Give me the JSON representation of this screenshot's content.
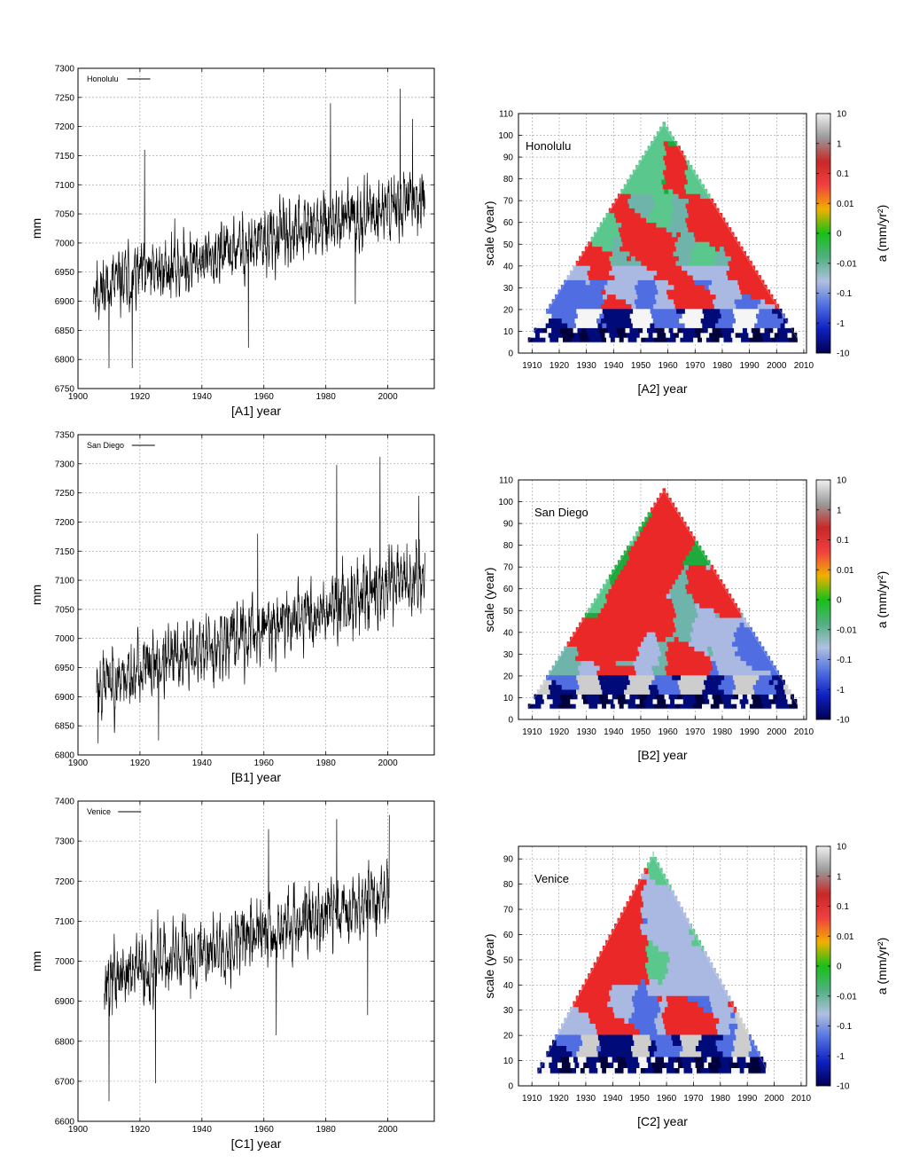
{
  "timeseries": [
    {
      "id": "A1",
      "city": "Honolulu",
      "xlabel": "[A1]   year",
      "ylabel": "mm",
      "xlim": [
        1900,
        2015
      ],
      "ylim": [
        6750,
        7300
      ],
      "xticks": [
        1900,
        1920,
        1940,
        1960,
        1980,
        2000
      ],
      "yticks": [
        6750,
        6800,
        6850,
        6900,
        6950,
        7000,
        7050,
        7100,
        7150,
        7200,
        7250,
        7300
      ],
      "start": 1905,
      "end": 2012,
      "base": [
        6920,
        7080
      ],
      "amp": 60,
      "seed": 11,
      "spikes": [
        [
          1910,
          6785
        ],
        [
          1917.5,
          6785
        ],
        [
          1955,
          6820
        ],
        [
          1989.5,
          6895
        ],
        [
          1981.5,
          7240
        ],
        [
          2004,
          7265
        ],
        [
          1921.5,
          7160
        ],
        [
          2008,
          7213
        ]
      ]
    },
    {
      "id": "B1",
      "city": "San Diego",
      "xlabel": "[B1]   year",
      "ylabel": "mm",
      "xlim": [
        1900,
        2015
      ],
      "ylim": [
        6800,
        7350
      ],
      "xticks": [
        1900,
        1920,
        1940,
        1960,
        1980,
        2000
      ],
      "yticks": [
        6800,
        6850,
        6900,
        6950,
        7000,
        7050,
        7100,
        7150,
        7200,
        7250,
        7300,
        7350
      ],
      "start": 1906,
      "end": 2012,
      "base": [
        6920,
        7110
      ],
      "amp": 65,
      "seed": 23,
      "spikes": [
        [
          1906.5,
          6820
        ],
        [
          1983.5,
          7298
        ],
        [
          1997.5,
          7312
        ],
        [
          1958,
          7180
        ],
        [
          2010,
          7245
        ],
        [
          1926,
          6825
        ]
      ]
    },
    {
      "id": "C1",
      "city": "Venice",
      "xlabel": "[C1]   year",
      "ylabel": "mm",
      "xlim": [
        1900,
        2015
      ],
      "ylim": [
        6600,
        7400
      ],
      "xticks": [
        1900,
        1920,
        1940,
        1960,
        1980,
        2000
      ],
      "yticks": [
        6600,
        6700,
        6800,
        6900,
        7000,
        7100,
        7200,
        7300,
        7400
      ],
      "start": 1908.5,
      "end": 2000.5,
      "base": [
        6950,
        7170
      ],
      "amp": 100,
      "seed": 37,
      "spikes": [
        [
          1910,
          6650
        ],
        [
          2000.5,
          7365
        ],
        [
          1983.5,
          7355
        ],
        [
          1961.5,
          7330
        ],
        [
          1925,
          6695
        ],
        [
          1964,
          6815
        ],
        [
          1993.5,
          6865
        ]
      ]
    }
  ],
  "heatmaps": [
    {
      "id": "A2",
      "city": "Honolulu",
      "xlabel": "[A2]   year",
      "ylabel": "scale (year)",
      "cbar_label": "a (mm/yr²)",
      "xlim": [
        1905,
        2011
      ],
      "ylim": [
        0,
        110
      ],
      "xticks": [
        1910,
        1920,
        1930,
        1940,
        1950,
        1960,
        1970,
        1980,
        1990,
        2000,
        2010
      ],
      "yticks": [
        0,
        10,
        20,
        30,
        40,
        50,
        60,
        70,
        80,
        90,
        100,
        110
      ],
      "apex": [
        1958.5,
        105
      ],
      "base_y": 5,
      "seed": 5,
      "scheme": "honolulu"
    },
    {
      "id": "B2",
      "city": "San Diego",
      "xlabel": "[B2]   year",
      "ylabel": "scale (year)",
      "cbar_label": "a (mm/yr²)",
      "xlim": [
        1905,
        2011
      ],
      "ylim": [
        0,
        110
      ],
      "xticks": [
        1910,
        1920,
        1930,
        1940,
        1950,
        1960,
        1970,
        1980,
        1990,
        2000,
        2010
      ],
      "yticks": [
        0,
        10,
        20,
        30,
        40,
        50,
        60,
        70,
        80,
        90,
        100,
        110
      ],
      "apex": [
        1958.5,
        105
      ],
      "base_y": 5,
      "seed": 9,
      "scheme": "sandiego"
    },
    {
      "id": "C2",
      "city": "Venice",
      "xlabel": "[C2]   year",
      "ylabel": "scale (year)",
      "cbar_label": "a (mm/yr²)",
      "xlim": [
        1905,
        2012
      ],
      "ylim": [
        0,
        95
      ],
      "xticks": [
        1910,
        1920,
        1930,
        1940,
        1950,
        1960,
        1970,
        1980,
        1990,
        2000,
        2010
      ],
      "yticks": [
        0,
        10,
        20,
        30,
        40,
        50,
        60,
        70,
        80,
        90
      ],
      "apex": [
        1955,
        91
      ],
      "base_y": 5,
      "seed": 17,
      "scheme": "venice"
    }
  ],
  "colorbar": {
    "labels": [
      "10",
      "1",
      "0.1",
      "0.01",
      "0",
      "-0.01",
      "-0.1",
      "-1",
      "-10"
    ],
    "colors": [
      "#f0f0f0",
      "#9a9a9a",
      "#c82828",
      "#f04040",
      "#f0b000",
      "#18c018",
      "#50b080",
      "#b0c0e0",
      "#5070e0",
      "#1020c0",
      "#000050"
    ]
  },
  "chart_data": [
    {
      "type": "line",
      "title": "Honolulu",
      "xlabel": "[A1] year",
      "ylabel": "mm",
      "xlim": [
        1900,
        2015
      ],
      "ylim": [
        6750,
        7300
      ],
      "series": [
        {
          "name": "Honolulu",
          "start_year": 1905,
          "end_year": 2012,
          "min": 6785,
          "max": 7265
        }
      ]
    },
    {
      "type": "heatmap",
      "title": "Honolulu",
      "xlabel": "[A2] year",
      "ylabel": "scale (year)",
      "xlim": [
        1905,
        2011
      ],
      "ylim": [
        0,
        110
      ],
      "colorbar": "a (mm/yr²)"
    },
    {
      "type": "line",
      "title": "San Diego",
      "xlabel": "[B1] year",
      "ylabel": "mm",
      "xlim": [
        1900,
        2015
      ],
      "ylim": [
        6800,
        7350
      ],
      "series": [
        {
          "name": "San Diego",
          "start_year": 1906,
          "end_year": 2012,
          "min": 6820,
          "max": 7312
        }
      ]
    },
    {
      "type": "heatmap",
      "title": "San Diego",
      "xlabel": "[B2] year",
      "ylabel": "scale (year)",
      "xlim": [
        1905,
        2011
      ],
      "ylim": [
        0,
        110
      ],
      "colorbar": "a (mm/yr²)"
    },
    {
      "type": "line",
      "title": "Venice",
      "xlabel": "[C1] year",
      "ylabel": "mm",
      "xlim": [
        1900,
        2015
      ],
      "ylim": [
        6600,
        7400
      ],
      "series": [
        {
          "name": "Venice",
          "start_year": 1908.5,
          "end_year": 2000.5,
          "min": 6650,
          "max": 7365
        }
      ]
    },
    {
      "type": "heatmap",
      "title": "Venice",
      "xlabel": "[C2] year",
      "ylabel": "scale (year)",
      "xlim": [
        1905,
        2012
      ],
      "ylim": [
        0,
        95
      ],
      "colorbar": "a (mm/yr²)"
    }
  ]
}
